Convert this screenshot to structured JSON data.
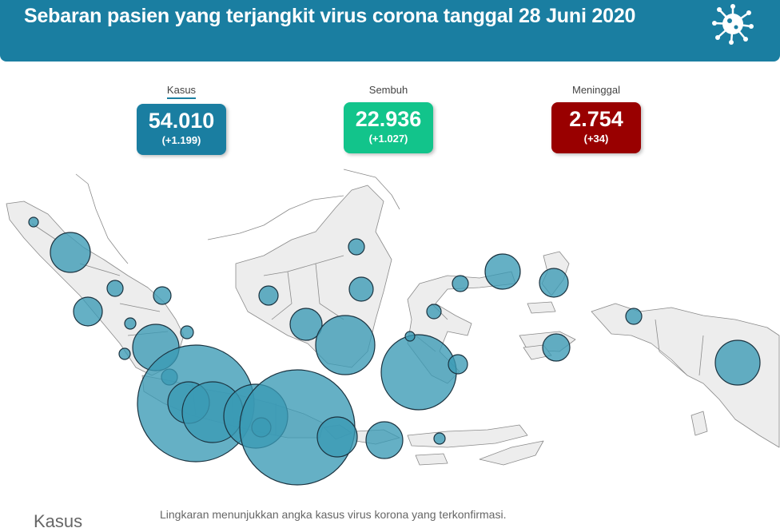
{
  "title": "Sebaran pasien yang terjangkit virus corona tanggal 28 Juni 2020",
  "icon": "virus-icon",
  "stats": {
    "kasus": {
      "label": "Kasus",
      "value": "54.010",
      "delta": "(+1.199)",
      "color": "#1a7ea1"
    },
    "sembuh": {
      "label": "Sembuh",
      "value": "22.936",
      "delta": "(+1.027)",
      "color": "#12c48b"
    },
    "meninggal": {
      "label": "Meninggal",
      "value": "2.754",
      "delta": "(+34)",
      "color": "#990000"
    }
  },
  "map": {
    "land_color": "#ededed",
    "border_color": "#8a8a8a",
    "bubble_color": "#3a9ab5",
    "bubble_stroke": "#1b3340"
  },
  "legend": {
    "title": "Kasus"
  },
  "note": "Lingkaran menunjukkan angka kasus virus korona yang terkonfirmasi."
}
